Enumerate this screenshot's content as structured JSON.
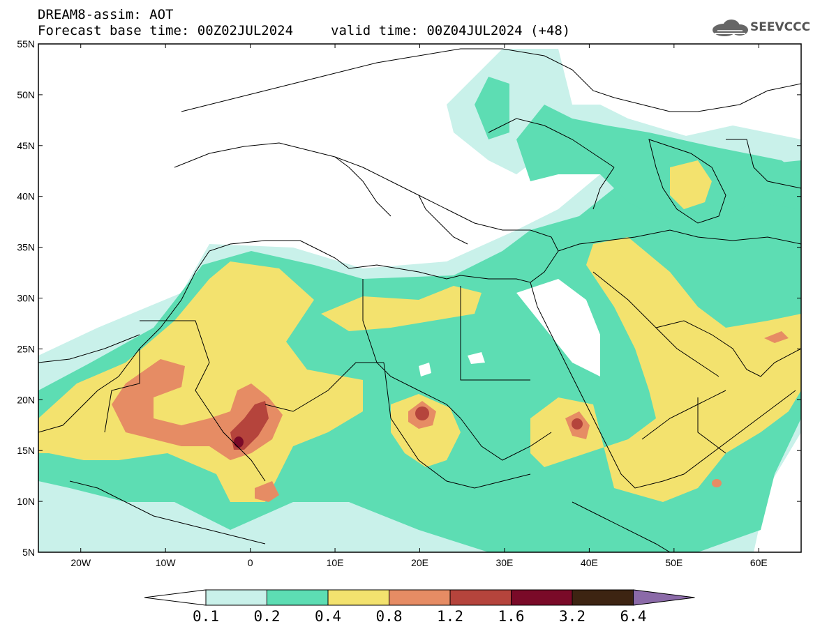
{
  "header": {
    "model_line": "DREAM8-assim: AOT",
    "base_time": "Forecast base time: 00Z02JUL2024",
    "valid_time": "valid time: 00Z04JUL2024 (+48)",
    "logo_text": "SEEVCCC"
  },
  "map": {
    "lat_labels": [
      "55N",
      "50N",
      "45N",
      "40N",
      "35N",
      "30N",
      "25N",
      "20N",
      "15N",
      "10N",
      "5N"
    ],
    "lon_labels": [
      "20W",
      "10W",
      "0",
      "10E",
      "20E",
      "30E",
      "40E",
      "50E",
      "60E"
    ],
    "lon_range": [
      -25,
      65
    ],
    "lat_range": [
      5,
      55
    ]
  },
  "colorbar": {
    "labels": [
      "0.1",
      "0.2",
      "0.4",
      "0.8",
      "1.2",
      "1.6",
      "3.2",
      "6.4"
    ],
    "colors": [
      "#c9f1ea",
      "#5dddb3",
      "#f3e26e",
      "#e68c64",
      "#b5443c",
      "#7a0a28",
      "#3d2412"
    ],
    "over_color": "#8b6aa8",
    "under_color": "#ffffff"
  }
}
